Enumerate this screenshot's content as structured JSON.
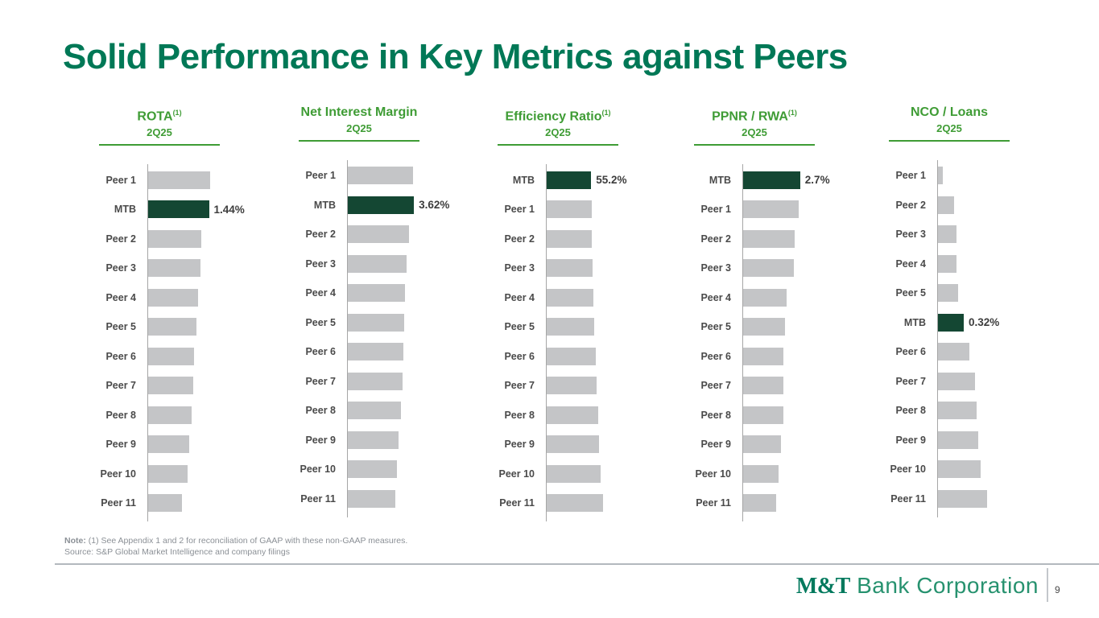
{
  "page": {
    "title": "Solid Performance in Key Metrics against Peers"
  },
  "colors": {
    "title_green": "#007856",
    "header_green": "#3f9c35",
    "mtb_bar_green": "#144733",
    "peer_bar_gray": "#c4c5c7",
    "axis_gray": "#a6a6a6"
  },
  "chart_data": [
    {
      "type": "bar",
      "orientation": "horizontal",
      "title": "ROTA",
      "title_sup": "(1)",
      "subtitle": "2Q25",
      "unit": "%",
      "xlim": [
        0,
        2.9
      ],
      "legend": "none",
      "grid": false,
      "rows": [
        {
          "label": "Peer 1",
          "value": 1.46
        },
        {
          "label": "MTB",
          "value": 1.44,
          "highlight": true,
          "value_label": "1.44%"
        },
        {
          "label": "Peer 2",
          "value": 1.25
        },
        {
          "label": "Peer 3",
          "value": 1.23
        },
        {
          "label": "Peer 4",
          "value": 1.19
        },
        {
          "label": "Peer 5",
          "value": 1.14
        },
        {
          "label": "Peer 6",
          "value": 1.08
        },
        {
          "label": "Peer 7",
          "value": 1.06
        },
        {
          "label": "Peer 8",
          "value": 1.02
        },
        {
          "label": "Peer 9",
          "value": 0.98
        },
        {
          "label": "Peer 10",
          "value": 0.93
        },
        {
          "label": "Peer 11",
          "value": 0.8
        }
      ]
    },
    {
      "type": "bar",
      "orientation": "horizontal",
      "title": "Net Interest Margin",
      "title_sup": "",
      "subtitle": "2Q25",
      "unit": "%",
      "xlim": [
        0,
        6.7
      ],
      "legend": "none",
      "grid": false,
      "rows": [
        {
          "label": "Peer 1",
          "value": 3.58
        },
        {
          "label": "MTB",
          "value": 3.62,
          "highlight": true,
          "value_label": "3.62%"
        },
        {
          "label": "Peer 2",
          "value": 3.36
        },
        {
          "label": "Peer 3",
          "value": 3.22
        },
        {
          "label": "Peer 4",
          "value": 3.13
        },
        {
          "label": "Peer 5",
          "value": 3.09
        },
        {
          "label": "Peer 6",
          "value": 3.05
        },
        {
          "label": "Peer 7",
          "value": 3.0
        },
        {
          "label": "Peer 8",
          "value": 2.91
        },
        {
          "label": "Peer 9",
          "value": 2.78
        },
        {
          "label": "Peer 10",
          "value": 2.69
        },
        {
          "label": "Peer 11",
          "value": 2.6
        }
      ]
    },
    {
      "type": "bar",
      "orientation": "horizontal",
      "title": "Efficiency Ratio",
      "title_sup": "(1)",
      "subtitle": "2Q25",
      "unit": "%",
      "xlim": [
        0,
        152
      ],
      "legend": "none",
      "grid": false,
      "rows": [
        {
          "label": "MTB",
          "value": 55.2,
          "highlight": true,
          "value_label": "55.2%"
        },
        {
          "label": "Peer 1",
          "value": 55.5
        },
        {
          "label": "Peer 2",
          "value": 56.0
        },
        {
          "label": "Peer 3",
          "value": 57.0
        },
        {
          "label": "Peer 4",
          "value": 57.5
        },
        {
          "label": "Peer 5",
          "value": 59.0
        },
        {
          "label": "Peer 6",
          "value": 61.0
        },
        {
          "label": "Peer 7",
          "value": 61.5
        },
        {
          "label": "Peer 8",
          "value": 64.0
        },
        {
          "label": "Peer 9",
          "value": 64.5
        },
        {
          "label": "Peer 10",
          "value": 67.0
        },
        {
          "label": "Peer 11",
          "value": 69.5
        }
      ]
    },
    {
      "type": "bar",
      "orientation": "horizontal",
      "title": "PPNR / RWA",
      "title_sup": "(1)",
      "subtitle": "2Q25",
      "unit": "%",
      "xlim": [
        0,
        5.8
      ],
      "legend": "none",
      "grid": false,
      "rows": [
        {
          "label": "MTB",
          "value": 2.7,
          "highlight": true,
          "value_label": "2.7%"
        },
        {
          "label": "Peer 1",
          "value": 2.65
        },
        {
          "label": "Peer 2",
          "value": 2.43
        },
        {
          "label": "Peer 3",
          "value": 2.4
        },
        {
          "label": "Peer 4",
          "value": 2.05
        },
        {
          "label": "Peer 5",
          "value": 1.98
        },
        {
          "label": "Peer 6",
          "value": 1.92
        },
        {
          "label": "Peer 7",
          "value": 1.9
        },
        {
          "label": "Peer 8",
          "value": 1.89
        },
        {
          "label": "Peer 9",
          "value": 1.79
        },
        {
          "label": "Peer 10",
          "value": 1.67
        },
        {
          "label": "Peer 11",
          "value": 1.56
        }
      ]
    },
    {
      "type": "bar",
      "orientation": "horizontal",
      "title": "NCO / Loans",
      "title_sup": "",
      "subtitle": "2Q25",
      "unit": "%",
      "xlim": [
        0,
        1.52
      ],
      "legend": "none",
      "grid": false,
      "rows": [
        {
          "label": "Peer 1",
          "value": 0.06
        },
        {
          "label": "Peer 2",
          "value": 0.2
        },
        {
          "label": "Peer 3",
          "value": 0.23
        },
        {
          "label": "Peer 4",
          "value": 0.23
        },
        {
          "label": "Peer 5",
          "value": 0.25
        },
        {
          "label": "MTB",
          "value": 0.32,
          "highlight": true,
          "value_label": "0.32%"
        },
        {
          "label": "Peer 6",
          "value": 0.39
        },
        {
          "label": "Peer 7",
          "value": 0.46
        },
        {
          "label": "Peer 8",
          "value": 0.48
        },
        {
          "label": "Peer 9",
          "value": 0.5
        },
        {
          "label": "Peer 10",
          "value": 0.53
        },
        {
          "label": "Peer 11",
          "value": 0.61
        }
      ]
    }
  ],
  "footnote": {
    "note_label": "Note:",
    "note_text": " (1) See Appendix 1 and 2 for reconciliation of GAAP with these non-GAAP measures.",
    "source_text": "Source: S&P Global Market Intelligence and company filings"
  },
  "footer": {
    "logo_strong": "M&T",
    "logo_text": " Bank Corporation",
    "page_number": "9"
  }
}
